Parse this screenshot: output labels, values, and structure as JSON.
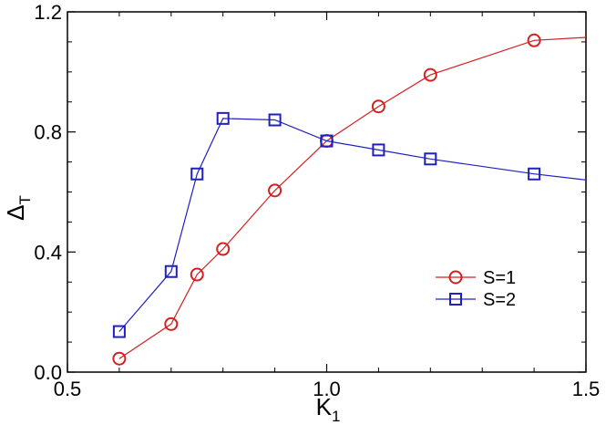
{
  "chart_data": {
    "type": "line",
    "title": "",
    "xlabel": {
      "main": "K",
      "sub": "1"
    },
    "ylabel": {
      "main": "Δ",
      "sub": "T"
    },
    "xlim": [
      0.5,
      1.5
    ],
    "ylim": [
      0.0,
      1.2
    ],
    "x_ticks": [
      0.5,
      1.0,
      1.5
    ],
    "x_tick_labels": [
      "0.5",
      "1.0",
      "1.5"
    ],
    "x_minor_ticks": [
      0.6,
      0.7,
      0.8,
      0.9,
      1.1,
      1.2,
      1.3,
      1.4
    ],
    "y_ticks": [
      0.0,
      0.4,
      0.8,
      1.2
    ],
    "y_tick_labels": [
      "0.0",
      "0.4",
      "0.8",
      "1.2"
    ],
    "y_minor_ticks": [
      0.1,
      0.2,
      0.3,
      0.5,
      0.6,
      0.7,
      0.9,
      1.0,
      1.1
    ],
    "grid": false,
    "legend_position": "lower-right",
    "series": [
      {
        "name": "S=1",
        "color": "#d42020",
        "marker": "circle",
        "x": [
          0.6,
          0.7,
          0.75,
          0.8,
          0.9,
          1.0,
          1.1,
          1.2,
          1.4,
          1.5
        ],
        "y": [
          0.045,
          0.16,
          0.325,
          0.41,
          0.605,
          0.77,
          0.885,
          0.99,
          1.105,
          1.115
        ],
        "marker_points": 9
      },
      {
        "name": "S=2",
        "color": "#2020c0",
        "marker": "square",
        "x": [
          0.6,
          0.7,
          0.75,
          0.8,
          0.9,
          1.0,
          1.1,
          1.2,
          1.4,
          1.5
        ],
        "y": [
          0.135,
          0.335,
          0.66,
          0.845,
          0.84,
          0.77,
          0.74,
          0.71,
          0.66,
          0.64
        ],
        "marker_points": 9
      }
    ]
  }
}
